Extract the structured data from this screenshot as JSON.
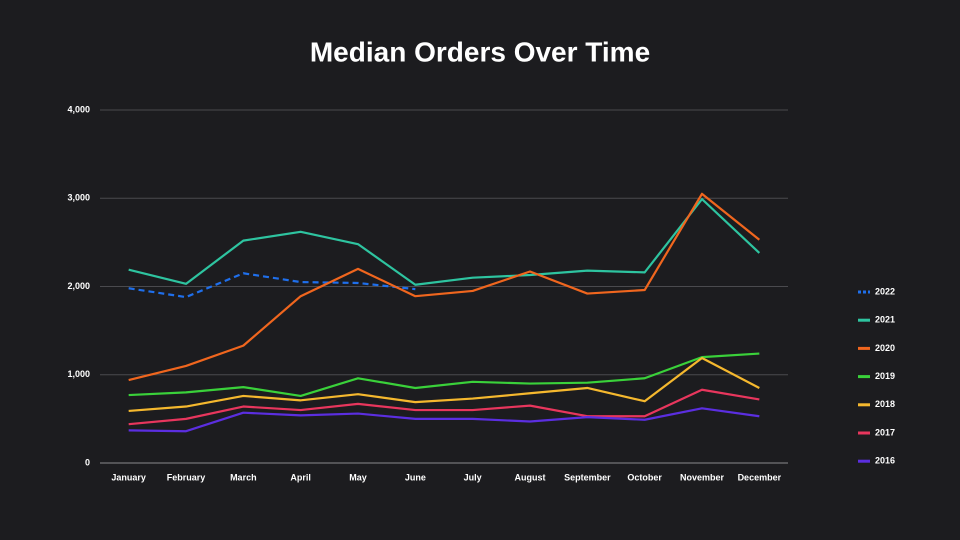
{
  "chart_data": {
    "type": "line",
    "title": "Median Orders Over Time",
    "categories": [
      "January",
      "February",
      "March",
      "April",
      "May",
      "June",
      "July",
      "August",
      "September",
      "October",
      "November",
      "December"
    ],
    "ylim": [
      0,
      4000
    ],
    "yticks": [
      0,
      {
        "value": 1000,
        "label": "1,000"
      },
      {
        "value": 2000,
        "label": "2,000"
      },
      {
        "value": 3000,
        "label": "3,000"
      },
      {
        "value": 4000,
        "label": "4,000"
      }
    ],
    "grid": true,
    "legend": "right",
    "series": [
      {
        "name": "2022",
        "color": "#1f6feb",
        "dashed": true,
        "values": [
          1980,
          1880,
          2150,
          2050,
          2040,
          1970,
          null,
          null,
          null,
          null,
          null,
          null
        ]
      },
      {
        "name": "2021",
        "color": "#2ec4a0",
        "values": [
          2190,
          2030,
          2520,
          2620,
          2480,
          2020,
          2100,
          2130,
          2180,
          2160,
          2990,
          2380
        ]
      },
      {
        "name": "2020",
        "color": "#f0661e",
        "values": [
          940,
          1100,
          1330,
          1890,
          2200,
          1890,
          1950,
          2170,
          1920,
          1960,
          3050,
          2530
        ]
      },
      {
        "name": "2019",
        "color": "#3ad13a",
        "values": [
          770,
          800,
          860,
          760,
          960,
          850,
          920,
          900,
          910,
          960,
          1200,
          1240
        ]
      },
      {
        "name": "2018",
        "color": "#f5b82e",
        "values": [
          590,
          640,
          760,
          710,
          780,
          690,
          730,
          790,
          850,
          700,
          1190,
          850
        ]
      },
      {
        "name": "2017",
        "color": "#e8365d",
        "values": [
          440,
          500,
          640,
          600,
          670,
          600,
          600,
          650,
          530,
          530,
          830,
          720
        ]
      },
      {
        "name": "2016",
        "color": "#5b2ee0",
        "values": [
          370,
          360,
          570,
          540,
          560,
          500,
          500,
          470,
          520,
          490,
          620,
          530
        ]
      }
    ]
  }
}
